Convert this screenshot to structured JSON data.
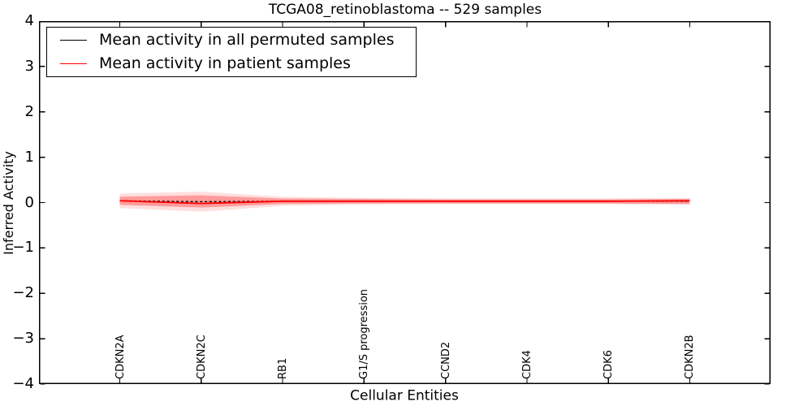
{
  "figure": {
    "title": "TCGA08_retinoblastoma -- 529 samples"
  },
  "chart_data": {
    "type": "line",
    "title": "TCGA08_retinoblastoma -- 529 samples",
    "xlabel": "Cellular Entities",
    "ylabel": "Inferred Activity",
    "ylim": [
      -4,
      4
    ],
    "ytick_labels": [
      "4",
      "3",
      "2",
      "1",
      "0",
      "−1",
      "−2",
      "−3",
      "−4"
    ],
    "grid": false,
    "categories": [
      "CDKN2A",
      "CDKN2C",
      "RB1",
      "G1/S progression",
      "CCND2",
      "CDK4",
      "CDK6",
      "CDKN2B"
    ],
    "series": [
      {
        "name": "Mean activity in all permuted samples",
        "color": "#000000",
        "style": "dashed",
        "values": [
          0.04,
          0.02,
          0.03,
          0.03,
          0.03,
          0.03,
          0.03,
          0.03
        ]
      },
      {
        "name": "Mean activity in patient samples",
        "color": "#ff0000",
        "style": "solid",
        "values": [
          0.04,
          -0.02,
          0.03,
          0.03,
          0.03,
          0.03,
          0.03,
          0.04
        ]
      }
    ],
    "bands": [
      {
        "name": "patient-activity-spread-outer",
        "color": "rgba(255,0,0,0.13)",
        "upper": [
          0.2,
          0.24,
          0.13,
          0.1,
          0.09,
          0.09,
          0.09,
          0.1
        ],
        "lower": [
          -0.12,
          -0.2,
          -0.07,
          -0.04,
          -0.03,
          -0.03,
          -0.03,
          -0.05
        ]
      },
      {
        "name": "patient-activity-spread-inner",
        "color": "rgba(255,0,0,0.30)",
        "upper": [
          0.13,
          0.16,
          0.09,
          0.08,
          0.07,
          0.07,
          0.07,
          0.08
        ],
        "lower": [
          -0.05,
          -0.11,
          -0.03,
          -0.02,
          -0.02,
          -0.02,
          -0.02,
          -0.03
        ]
      }
    ],
    "legend": {
      "position": "upper left",
      "entries": [
        "Mean activity in all permuted samples",
        "Mean activity in patient samples"
      ]
    }
  }
}
